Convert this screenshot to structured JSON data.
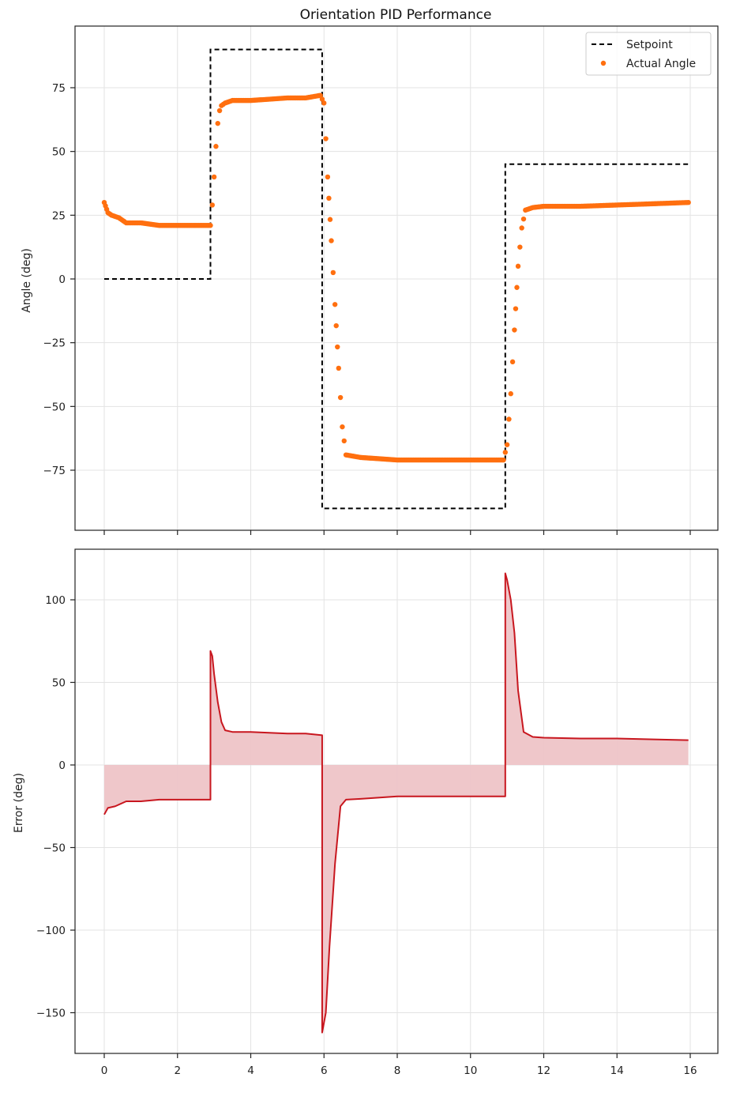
{
  "figure": {
    "title": "Orientation PID Performance",
    "colors": {
      "setpoint": "#000000",
      "actual": "#ff6f0f",
      "error_line": "#c8171f",
      "error_fill": "#eec4c7",
      "grid": "#e3e3e3"
    }
  },
  "chart_data": [
    {
      "type": "line+scatter",
      "title": "Orientation PID Performance",
      "xlabel": "",
      "ylabel": "Angle (deg)",
      "xlim": [
        -0.8,
        16.8
      ],
      "ylim": [
        -99,
        99
      ],
      "xticks": [
        0,
        2,
        4,
        6,
        8,
        10,
        12,
        14,
        16
      ],
      "yticks": [
        -75,
        -50,
        -25,
        0,
        25,
        50,
        75
      ],
      "ytick_labels": [
        "−75",
        "−50",
        "−25",
        "0",
        "25",
        "50",
        "75"
      ],
      "grid": true,
      "legend": {
        "position": "upper right",
        "entries": [
          "Setpoint",
          "Actual Angle"
        ]
      },
      "series": [
        {
          "name": "Setpoint",
          "style": "dashed",
          "x": [
            0,
            2.9,
            2.9,
            5.95,
            5.95,
            10.95,
            10.95,
            15.95
          ],
          "y": [
            0,
            0,
            90,
            90,
            -90,
            -90,
            45,
            45
          ]
        },
        {
          "name": "Actual Angle",
          "style": "dots",
          "x": [
            0,
            0.1,
            0.2,
            0.4,
            0.6,
            1.0,
            1.5,
            2.0,
            2.5,
            2.9,
            2.95,
            3.0,
            3.05,
            3.1,
            3.15,
            3.2,
            3.3,
            3.5,
            4.0,
            4.5,
            5.0,
            5.5,
            5.9,
            6.0,
            6.05,
            6.1,
            6.2,
            6.3,
            6.4,
            6.5,
            6.6,
            7.0,
            7.5,
            8.0,
            9.0,
            10.0,
            10.9,
            11.0,
            11.1,
            11.2,
            11.3,
            11.4,
            11.5,
            11.7,
            12.0,
            13.0,
            14.0,
            15.0,
            15.95
          ],
          "y": [
            30,
            26,
            25,
            24,
            22,
            22,
            21,
            21,
            21,
            21,
            29,
            40,
            52,
            61,
            66,
            68,
            69,
            70,
            70,
            70.5,
            71,
            71,
            72,
            69,
            55,
            40,
            15,
            -10,
            -35,
            -58,
            -69,
            -70,
            -70.5,
            -71,
            -71,
            -71,
            -71,
            -65,
            -45,
            -20,
            5,
            20,
            27,
            28,
            28.5,
            28.5,
            29,
            29.5,
            30
          ]
        }
      ]
    },
    {
      "type": "area",
      "xlabel": "",
      "ylabel": "Error (deg)",
      "xlim": [
        -0.8,
        16.8
      ],
      "ylim": [
        -175,
        130
      ],
      "xticks": [
        0,
        2,
        4,
        6,
        8,
        10,
        12,
        14,
        16
      ],
      "xtick_labels": [
        "0",
        "2",
        "4",
        "6",
        "8",
        "10",
        "12",
        "14",
        "16"
      ],
      "yticks": [
        -150,
        -100,
        -50,
        0,
        50,
        100
      ],
      "ytick_labels": [
        "−150",
        "−100",
        "−50",
        "0",
        "50",
        "100"
      ],
      "grid": true,
      "series": [
        {
          "name": "Error",
          "fill_to_zero": true,
          "x": [
            0,
            0.1,
            0.3,
            0.6,
            1.0,
            1.5,
            2.0,
            2.5,
            2.9,
            2.9,
            2.95,
            3.0,
            3.1,
            3.2,
            3.3,
            3.5,
            4.0,
            4.5,
            5.0,
            5.5,
            5.95,
            5.95,
            6.05,
            6.15,
            6.3,
            6.45,
            6.6,
            7.0,
            8.0,
            9.0,
            10.0,
            10.95,
            10.95,
            11.0,
            11.1,
            11.2,
            11.3,
            11.45,
            11.7,
            12.0,
            13.0,
            14.0,
            15.0,
            15.95
          ],
          "y": [
            -30,
            -26,
            -25,
            -22,
            -22,
            -21,
            -21,
            -21,
            -21,
            69,
            66,
            55,
            38,
            26,
            21,
            20,
            20,
            19.5,
            19,
            19,
            18,
            -162,
            -150,
            -110,
            -60,
            -25,
            -21,
            -20.5,
            -19,
            -19,
            -19,
            -19,
            116,
            112,
            100,
            80,
            45,
            20,
            17,
            16.5,
            16,
            16,
            15.5,
            15
          ]
        }
      ]
    }
  ]
}
